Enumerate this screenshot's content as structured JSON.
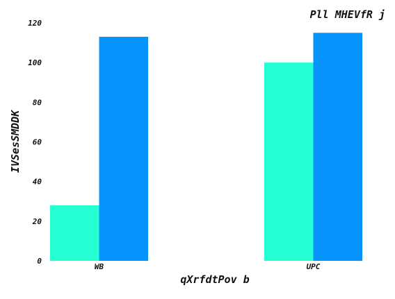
{
  "chart_data": {
    "type": "bar",
    "title": "Pll MHEVfR j",
    "xlabel": "qXrfdtPov b",
    "ylabel": "IVSesSMDDK",
    "categories": [
      "WB",
      "UPC"
    ],
    "series": [
      {
        "values": [
          28,
          100
        ],
        "color": "#26ffd4"
      },
      {
        "values": [
          113,
          115
        ],
        "color": "#0693fc"
      }
    ],
    "ylim": [
      0,
      120
    ],
    "yticks": [
      0,
      20,
      40,
      60,
      80,
      100,
      120
    ],
    "grid": false,
    "legend": "none"
  }
}
